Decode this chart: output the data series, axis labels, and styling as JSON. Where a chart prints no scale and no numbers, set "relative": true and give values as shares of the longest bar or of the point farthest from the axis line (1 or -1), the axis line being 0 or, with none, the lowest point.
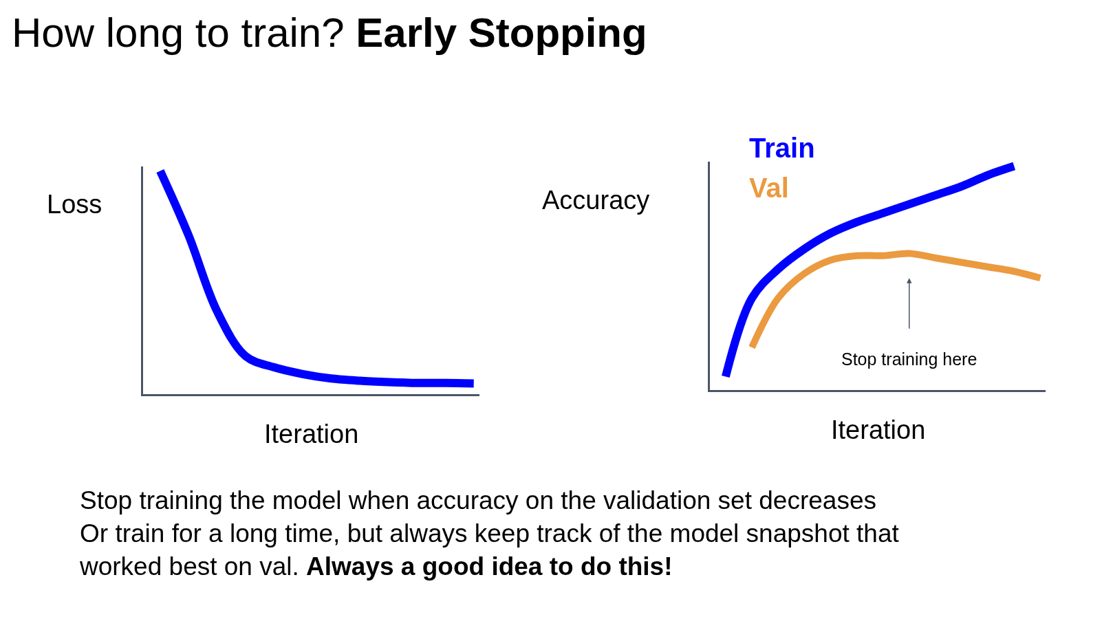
{
  "chart_data": [
    {
      "type": "line",
      "title": "How long to train?",
      "subtitle": "Early Stopping",
      "ylabel": "Loss",
      "xlabel": "Iteration",
      "relative": true,
      "categories": [
        null,
        null,
        null,
        null,
        null,
        null,
        null,
        null,
        null,
        null,
        null,
        null
      ],
      "series": [
        {
          "color": "#0000ff",
          "values": [
            1.0,
            0.71,
            0.37,
            0.17,
            0.12,
            0.09,
            0.07,
            0.06,
            0.054,
            0.05,
            0.05,
            0.048
          ]
        }
      ]
    },
    {
      "type": "line",
      "ylabel": "Accuracy",
      "xlabel": "Iteration",
      "relative": true,
      "categories": [
        null,
        null,
        null,
        null,
        null,
        null,
        null,
        null,
        null,
        null,
        null,
        null,
        null
      ],
      "series": [
        {
          "name": "Train",
          "color": "#0000ff",
          "values": [
            0.06,
            0.41,
            0.54,
            0.63,
            0.7,
            0.75,
            0.79,
            0.83,
            0.87,
            0.91,
            0.96,
            1.0,
            null
          ]
        },
        {
          "name": "Val",
          "color": "#eb9a3f",
          "values": [
            null,
            0.19,
            0.41,
            0.52,
            0.58,
            0.6,
            0.6,
            0.61,
            0.59,
            0.57,
            0.55,
            0.53,
            0.5
          ]
        }
      ],
      "annotations": [
        "Stop training here",
        "Stop training the model when accuracy on the validation set decreases",
        "Or train for a long time, but always keep track of the model snapshot that",
        "worked best on val.",
        "Always a good idea to do this!"
      ]
    }
  ]
}
